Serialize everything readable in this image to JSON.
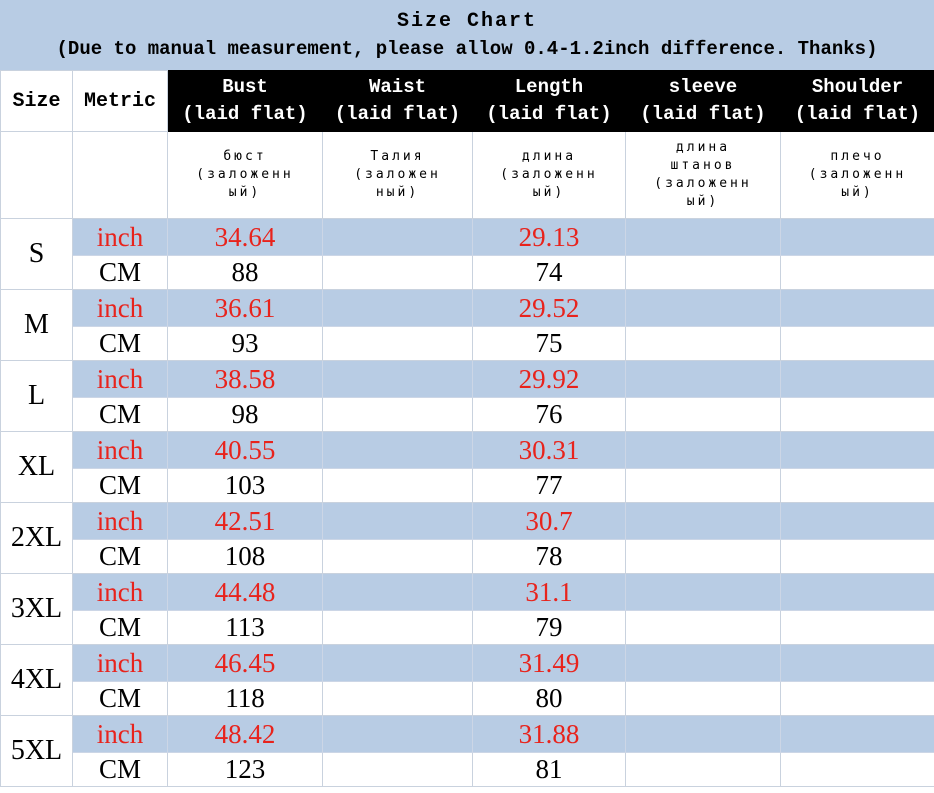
{
  "page": {
    "title": "Size Chart",
    "subtitle": "(Due to manual measurement, please allow 0.4-1.2inch difference. Thanks)"
  },
  "table": {
    "corner": {
      "size": "Size",
      "metric": "Metric"
    },
    "columns": [
      {
        "key": "bust",
        "en": "Bust",
        "sub": "(laid flat)",
        "ru": "бюст (заложенный)"
      },
      {
        "key": "waist",
        "en": "Waist",
        "sub": "(laid flat)",
        "ru": "Талия (заложенный)"
      },
      {
        "key": "length",
        "en": "Length",
        "sub": "(laid flat)",
        "ru": "длина (заложенный)"
      },
      {
        "key": "sleeve",
        "en": "sleeve",
        "sub": "(laid flat)",
        "ru": "длина штанов (заложенный)"
      },
      {
        "key": "shoulder",
        "en": "Shoulder",
        "sub": "(laid flat)",
        "ru": "плечо (заложенный)"
      }
    ],
    "units": {
      "inch": "inch",
      "cm": "CM"
    },
    "rows": [
      {
        "size": "S",
        "inch": {
          "bust": "34.64",
          "waist": "",
          "length": "29.13",
          "sleeve": "",
          "shoulder": ""
        },
        "cm": {
          "bust": "88",
          "waist": "",
          "length": "74",
          "sleeve": "",
          "shoulder": ""
        }
      },
      {
        "size": "M",
        "inch": {
          "bust": "36.61",
          "waist": "",
          "length": "29.52",
          "sleeve": "",
          "shoulder": ""
        },
        "cm": {
          "bust": "93",
          "waist": "",
          "length": "75",
          "sleeve": "",
          "shoulder": ""
        }
      },
      {
        "size": "L",
        "inch": {
          "bust": "38.58",
          "waist": "",
          "length": "29.92",
          "sleeve": "",
          "shoulder": ""
        },
        "cm": {
          "bust": "98",
          "waist": "",
          "length": "76",
          "sleeve": "",
          "shoulder": ""
        }
      },
      {
        "size": "XL",
        "inch": {
          "bust": "40.55",
          "waist": "",
          "length": "30.31",
          "sleeve": "",
          "shoulder": ""
        },
        "cm": {
          "bust": "103",
          "waist": "",
          "length": "77",
          "sleeve": "",
          "shoulder": ""
        }
      },
      {
        "size": "2XL",
        "inch": {
          "bust": "42.51",
          "waist": "",
          "length": "30.7",
          "sleeve": "",
          "shoulder": ""
        },
        "cm": {
          "bust": "108",
          "waist": "",
          "length": "78",
          "sleeve": "",
          "shoulder": ""
        }
      },
      {
        "size": "3XL",
        "inch": {
          "bust": "44.48",
          "waist": "",
          "length": "31.1",
          "sleeve": "",
          "shoulder": ""
        },
        "cm": {
          "bust": "113",
          "waist": "",
          "length": "79",
          "sleeve": "",
          "shoulder": ""
        }
      },
      {
        "size": "4XL",
        "inch": {
          "bust": "46.45",
          "waist": "",
          "length": "31.49",
          "sleeve": "",
          "shoulder": ""
        },
        "cm": {
          "bust": "118",
          "waist": "",
          "length": "80",
          "sleeve": "",
          "shoulder": ""
        }
      },
      {
        "size": "5XL",
        "inch": {
          "bust": "48.42",
          "waist": "",
          "length": "31.88",
          "sleeve": "",
          "shoulder": ""
        },
        "cm": {
          "bust": "123",
          "waist": "",
          "length": "81",
          "sleeve": "",
          "shoulder": ""
        }
      }
    ]
  },
  "colors": {
    "band_blue": "#b8cce4",
    "header_bg": "#000000",
    "header_text": "#ffffff",
    "accent_red": "#e8231c",
    "grid_line": "#c9d2de"
  },
  "chart_data": {
    "type": "table",
    "title": "Size Chart",
    "subtitle": "(Due to manual measurement, please allow 0.4-1.2inch difference. Thanks)",
    "columns": [
      "Size",
      "Metric",
      "Bust (laid flat)",
      "Waist (laid flat)",
      "Length (laid flat)",
      "sleeve (laid flat)",
      "Shoulder (laid flat)"
    ],
    "rows": [
      [
        "S",
        "inch",
        "34.64",
        "",
        "29.13",
        "",
        ""
      ],
      [
        "S",
        "CM",
        "88",
        "",
        "74",
        "",
        ""
      ],
      [
        "M",
        "inch",
        "36.61",
        "",
        "29.52",
        "",
        ""
      ],
      [
        "M",
        "CM",
        "93",
        "",
        "75",
        "",
        ""
      ],
      [
        "L",
        "inch",
        "38.58",
        "",
        "29.92",
        "",
        ""
      ],
      [
        "L",
        "CM",
        "98",
        "",
        "76",
        "",
        ""
      ],
      [
        "XL",
        "inch",
        "40.55",
        "",
        "30.31",
        "",
        ""
      ],
      [
        "XL",
        "CM",
        "103",
        "",
        "77",
        "",
        ""
      ],
      [
        "2XL",
        "inch",
        "42.51",
        "",
        "30.7",
        "",
        ""
      ],
      [
        "2XL",
        "CM",
        "108",
        "",
        "78",
        "",
        ""
      ],
      [
        "3XL",
        "inch",
        "44.48",
        "",
        "31.1",
        "",
        ""
      ],
      [
        "3XL",
        "CM",
        "113",
        "",
        "79",
        "",
        ""
      ],
      [
        "4XL",
        "inch",
        "46.45",
        "",
        "31.49",
        "",
        ""
      ],
      [
        "4XL",
        "CM",
        "118",
        "",
        "80",
        "",
        ""
      ],
      [
        "5XL",
        "inch",
        "48.42",
        "",
        "31.88",
        "",
        ""
      ],
      [
        "5XL",
        "CM",
        "123",
        "",
        "81",
        "",
        ""
      ]
    ]
  }
}
